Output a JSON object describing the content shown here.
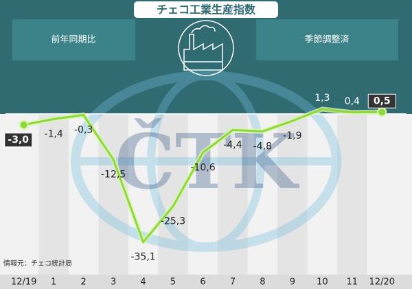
{
  "chart_data": {
    "type": "line",
    "title": "チェコ工業生産指数",
    "left_label": "前年同期比",
    "right_label": "季節調整済",
    "watermark": "ČTK",
    "source": "情報元：チェコ統計局",
    "categories": [
      "12/19",
      "1",
      "2",
      "3",
      "4",
      "5",
      "6",
      "7",
      "8",
      "9",
      "10",
      "11",
      "12/20"
    ],
    "series": [
      {
        "name": "前年同期比",
        "color": "#8fd83c",
        "values": [
          -3.0,
          -1.4,
          -0.3,
          -12.5,
          -35.1,
          -25.3,
          -10.6,
          -4.4,
          -4.8,
          -1.9,
          1.3,
          0.4,
          0.5
        ],
        "value_labels": [
          "-3,0",
          "-1,4",
          "-0,3",
          "-12,5",
          "-35,1",
          "-25,3",
          "-10,6",
          "-4,4",
          "-4,8",
          "-1,9",
          "1,3",
          "0,4",
          "0,5"
        ]
      }
    ],
    "ylim": [
      -44,
      6
    ]
  }
}
